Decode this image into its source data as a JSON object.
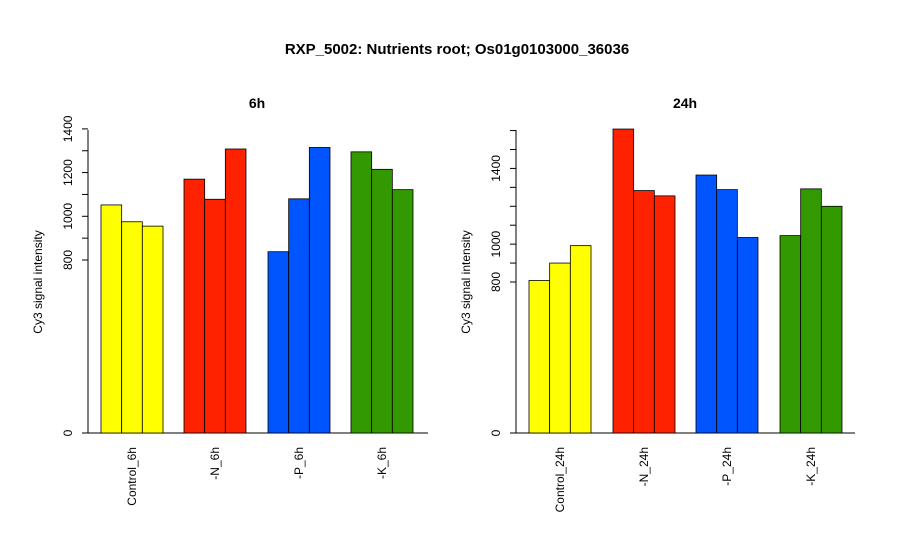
{
  "title": "RXP_5002: Nutrients root; Os01g0103000_36036",
  "chart_data": [
    {
      "type": "bar",
      "title": "6h",
      "ylabel": "Cy3 signal intensity",
      "xlabel": "",
      "categories": [
        "Control_6h",
        "-N_6h",
        "-P_6h",
        "-K_6h"
      ],
      "group_colors": [
        "#ffff00",
        "#ff2200",
        "#0055ff",
        "#339900"
      ],
      "values": [
        [
          1052,
          975,
          955
        ],
        [
          1170,
          1078,
          1308
        ],
        [
          838,
          1080,
          1315
        ],
        [
          1295,
          1215,
          1122
        ]
      ],
      "yticks": [
        0,
        800,
        1000,
        1200,
        1400
      ],
      "minor_ticks": [
        900,
        1100,
        1300
      ],
      "ylim": [
        0,
        1400
      ],
      "broken_axis": true
    },
    {
      "type": "bar",
      "title": "24h",
      "ylabel": "Cy3 signal intensity",
      "xlabel": "",
      "categories": [
        "Control_24h",
        "-N_24h",
        "-P_24h",
        "-K_24h"
      ],
      "group_colors": [
        "#ffff00",
        "#ff2200",
        "#0055ff",
        "#339900"
      ],
      "values": [
        [
          808,
          900,
          992
        ],
        [
          1608,
          1283,
          1255
        ],
        [
          1365,
          1288,
          1035
        ],
        [
          1045,
          1292,
          1200
        ]
      ],
      "yticks": [
        0,
        800,
        1000,
        1400
      ],
      "minor_ticks": [
        900,
        1100,
        1200,
        1300,
        1500,
        1600
      ],
      "ylim": [
        0,
        1600
      ],
      "broken_axis": true
    }
  ]
}
